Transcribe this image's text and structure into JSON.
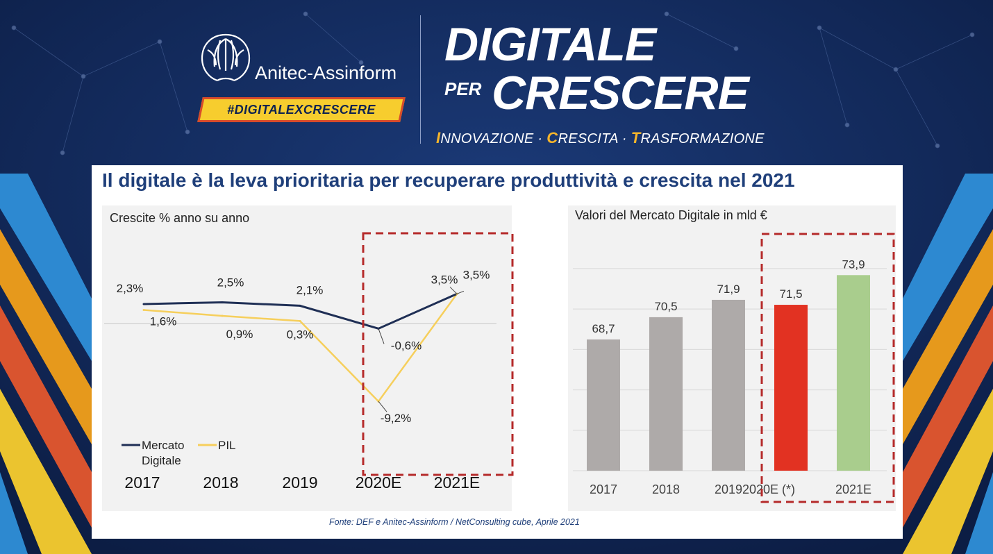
{
  "header": {
    "logo_text": "Anitec-Assinform",
    "hashtag": "#DIGITALEXCRESCERE",
    "title_line1": "DIGITALE",
    "title_per": "PER",
    "title_line2": "CRESCERE",
    "tagline": [
      {
        "initial": "I",
        "rest": "NNOVAZIONE"
      },
      {
        "initial": "C",
        "rest": "RESCITA"
      },
      {
        "initial": "T",
        "rest": "RASFORMAZIONE"
      }
    ],
    "tagline_sep": " · "
  },
  "slide": {
    "headline": "Il digitale è la leva prioritaria per recuperare produttività e crescita nel 2021",
    "source": "Fonte: DEF  e Anitec-Assinform / NetConsulting cube, Aprile  2021"
  },
  "colors": {
    "navy": "#1f2f55",
    "yellow": "#f6cf5c",
    "gray_bar": "#aeaaa9",
    "red_bar": "#e23222",
    "green_bar": "#a9cd8d",
    "dash_red": "#b52a2a"
  },
  "chart_data": [
    {
      "type": "line",
      "title": "Crescite % anno su anno",
      "categories": [
        "2017",
        "2018",
        "2019",
        "2020E",
        "2021E"
      ],
      "series": [
        {
          "name": "Mercato Digitale",
          "values": [
            2.3,
            2.5,
            2.1,
            -0.6,
            3.5
          ],
          "labels": [
            "2,3%",
            "2,5%",
            "2,1%",
            "-0,6%",
            "3,5%"
          ]
        },
        {
          "name": "PIL",
          "values": [
            1.6,
            0.9,
            0.3,
            -9.2,
            3.5
          ],
          "labels": [
            "1,6%",
            "0,9%",
            "0,3%",
            "-9,2%",
            "3,5%"
          ]
        }
      ],
      "legend": "bottom-left",
      "highlight_categories": [
        "2020E",
        "2021E"
      ]
    },
    {
      "type": "bar",
      "title": "Valori del Mercato Digitale in mld €",
      "categories": [
        "2017",
        "2018",
        "2019",
        "2020E (*)",
        "2021E"
      ],
      "values": [
        68.7,
        70.5,
        71.9,
        71.5,
        73.9
      ],
      "labels": [
        "68,7",
        "70,5",
        "71,9",
        "71,5",
        "73,9"
      ],
      "ylim": [
        60,
        75
      ],
      "grid": true,
      "highlight_categories": [
        "2020E (*)",
        "2021E"
      ]
    }
  ]
}
